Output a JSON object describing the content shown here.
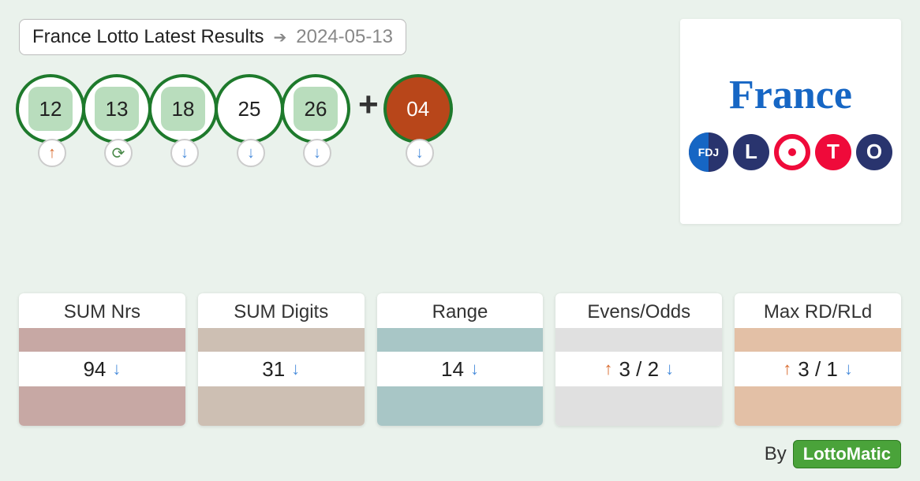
{
  "header": {
    "title": "France Lotto Latest Results",
    "date": "2024-05-13"
  },
  "balls": {
    "main": [
      {
        "n": "12",
        "highlight": true,
        "trend": "up"
      },
      {
        "n": "13",
        "highlight": true,
        "trend": "repeat"
      },
      {
        "n": "18",
        "highlight": true,
        "trend": "down"
      },
      {
        "n": "25",
        "highlight": false,
        "trend": "down"
      },
      {
        "n": "26",
        "highlight": true,
        "trend": "down"
      }
    ],
    "bonus": {
      "n": "04",
      "trend": "down"
    }
  },
  "logo": {
    "title": "France",
    "letters": [
      "L",
      "O",
      "T",
      "O"
    ],
    "fdj": "FDJ"
  },
  "stats": [
    {
      "title": "SUM Nrs",
      "value": "94",
      "top_color": "#c7a8a4",
      "bot_color": "#c7a8a4",
      "layout": "value-down"
    },
    {
      "title": "SUM Digits",
      "value": "31",
      "top_color": "#cdbfb3",
      "bot_color": "#cdbfb3",
      "layout": "value-down"
    },
    {
      "title": "Range",
      "value": "14",
      "top_color": "#a8c6c6",
      "bot_color": "#a8c6c6",
      "layout": "value-down"
    },
    {
      "title": "Evens/Odds",
      "value": "3 / 2",
      "top_color": "#e0e0e0",
      "bot_color": "#e0e0e0",
      "layout": "up-value-down"
    },
    {
      "title": "Max RD/RLd",
      "value": "3 / 1",
      "top_color": "#e3c0a6",
      "bot_color": "#e3c0a6",
      "layout": "up-value-down"
    }
  ],
  "footer": {
    "by": "By",
    "brand": "LottoMatic"
  },
  "colors": {
    "page_bg": "#eaf2ec",
    "ball_border": "#1e7a2c",
    "highlight_fill": "#b9ddbd",
    "bonus_fill": "#b8461a",
    "up": "#d96b2e",
    "down": "#4d8fdc",
    "repeat": "#4a8a4a"
  }
}
